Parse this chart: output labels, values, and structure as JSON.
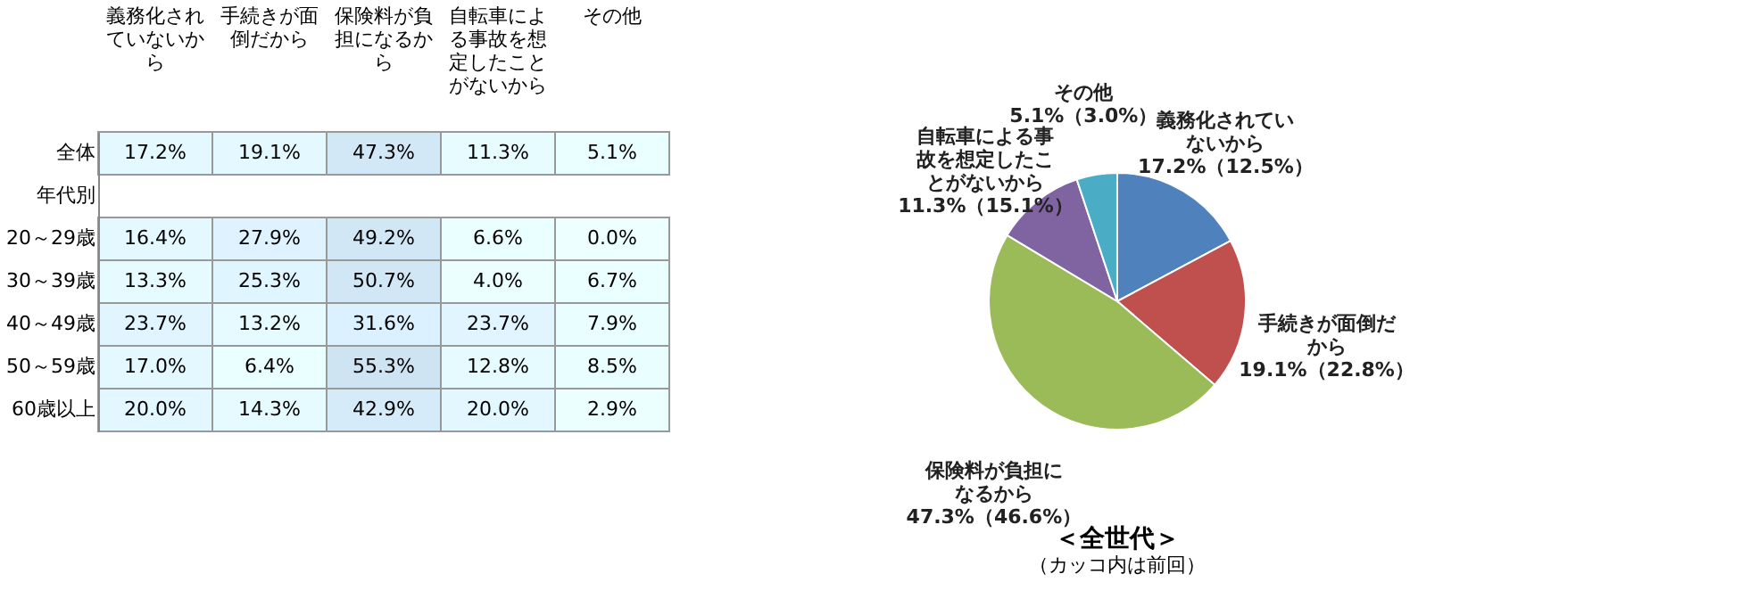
{
  "chart_data": [
    {
      "type": "heatmap",
      "categories": [
        "義務化されていないから",
        "手続きが面倒だから",
        "保険料が負担になるから",
        "自転車による事故を想定したことがないから",
        "その他"
      ],
      "y_categories": [
        "全体",
        "年代別",
        "20～29歳",
        "30～39歳",
        "40～49歳",
        "50～59歳",
        "60歳以上"
      ],
      "cells": [
        [
          17.2,
          19.1,
          47.3,
          11.3,
          5.1
        ],
        [
          null,
          null,
          null,
          null,
          null
        ],
        [
          16.4,
          27.9,
          49.2,
          6.6,
          0.0
        ],
        [
          13.3,
          25.3,
          50.7,
          4.0,
          6.7
        ],
        [
          23.7,
          13.2,
          31.6,
          23.7,
          7.9
        ],
        [
          17.0,
          6.4,
          55.3,
          12.8,
          8.5
        ],
        [
          20.0,
          14.3,
          42.9,
          20.0,
          2.9
        ]
      ],
      "cell_labels": [
        [
          "17.2%",
          "19.1%",
          "47.3%",
          "11.3%",
          "5.1%"
        ],
        [
          null,
          null,
          null,
          null,
          null
        ],
        [
          "16.4%",
          "27.9%",
          "49.2%",
          "6.6%",
          "0.0%"
        ],
        [
          "13.3%",
          "25.3%",
          "50.7%",
          "4.0%",
          "6.7%"
        ],
        [
          "23.7%",
          "13.2%",
          "31.6%",
          "23.7%",
          "7.9%"
        ],
        [
          "17.0%",
          "6.4%",
          "55.3%",
          "12.8%",
          "8.5%"
        ],
        [
          "20.0%",
          "14.3%",
          "42.9%",
          "20.0%",
          "2.9%"
        ]
      ]
    },
    {
      "type": "pie",
      "title": "＜全世代＞",
      "subtitle": "（カッコ内は前回）",
      "categories": [
        "義務化されていないから",
        "手続きが面倒だから",
        "保険料が負担になるから",
        "自転車による事故を想定したことがないから",
        "その他"
      ],
      "values": [
        17.2,
        19.1,
        47.3,
        11.3,
        5.1
      ],
      "value_labels": [
        "17.2%（12.5%）",
        "19.1%（22.8%）",
        "47.3%（46.6%）",
        "11.3%（15.1%）",
        "5.1%（3.0%）"
      ],
      "colors": [
        "#4f81bd",
        "#c0504d",
        "#9bbb59",
        "#8064a2",
        "#4bacc6"
      ]
    }
  ]
}
